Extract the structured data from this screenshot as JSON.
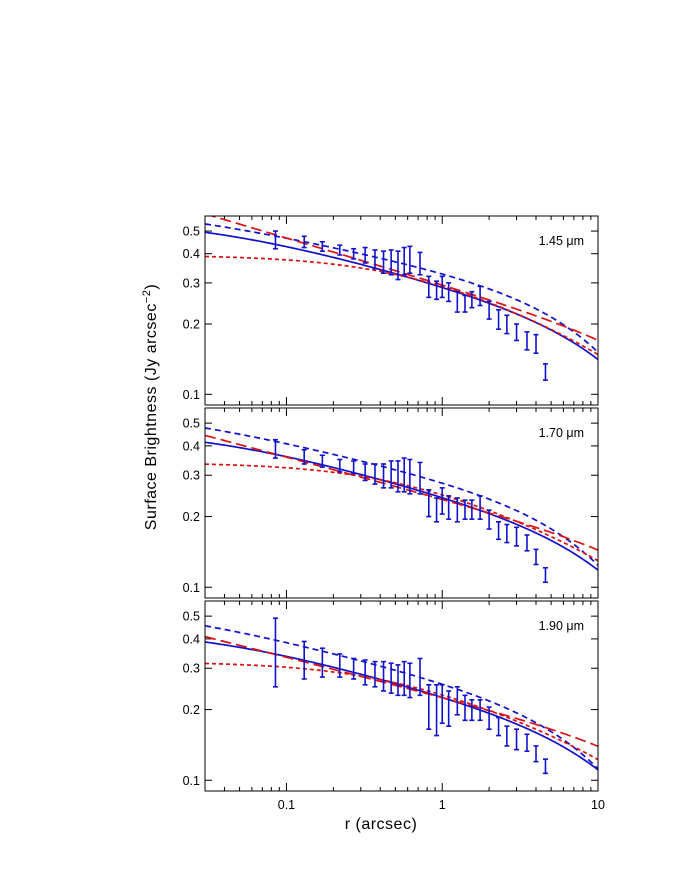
{
  "chart_data": {
    "type": "scatter",
    "xlabel": "r  (arcsec)",
    "ylabel": "Surface Brightness  (Jy arcsec",
    "ylabel_exponent": "−2",
    "ylabel_close": ")",
    "xscale": "log",
    "yscale": "log",
    "xlim": [
      0.03,
      10
    ],
    "ylim": [
      0.09,
      0.58
    ],
    "x_ticks": [
      0.1,
      1,
      10
    ],
    "x_tick_labels": [
      "0.1",
      "1",
      "10"
    ],
    "y_ticks": [
      0.1,
      0.2,
      0.3,
      0.4,
      0.5
    ],
    "y_tick_labels": [
      "0.1",
      "0.2",
      "0.3",
      "0.4",
      "0.5"
    ],
    "colors": {
      "data": "#1111cc",
      "red": "#dd1111",
      "axis": "#000000"
    },
    "panels": [
      {
        "label": "1.45 μm",
        "points": [
          {
            "x": 0.085,
            "y": 0.46,
            "err": 0.04
          },
          {
            "x": 0.13,
            "y": 0.45,
            "err": 0.025
          },
          {
            "x": 0.17,
            "y": 0.43,
            "err": 0.02
          },
          {
            "x": 0.22,
            "y": 0.415,
            "err": 0.02
          },
          {
            "x": 0.27,
            "y": 0.4,
            "err": 0.02
          },
          {
            "x": 0.32,
            "y": 0.395,
            "err": 0.03
          },
          {
            "x": 0.37,
            "y": 0.38,
            "err": 0.035
          },
          {
            "x": 0.42,
            "y": 0.37,
            "err": 0.04
          },
          {
            "x": 0.47,
            "y": 0.37,
            "err": 0.045
          },
          {
            "x": 0.52,
            "y": 0.36,
            "err": 0.05
          },
          {
            "x": 0.57,
            "y": 0.375,
            "err": 0.05
          },
          {
            "x": 0.62,
            "y": 0.38,
            "err": 0.05
          },
          {
            "x": 0.72,
            "y": 0.365,
            "err": 0.04
          },
          {
            "x": 0.82,
            "y": 0.29,
            "err": 0.03
          },
          {
            "x": 0.92,
            "y": 0.28,
            "err": 0.025
          },
          {
            "x": 1.0,
            "y": 0.29,
            "err": 0.03
          },
          {
            "x": 1.1,
            "y": 0.275,
            "err": 0.025
          },
          {
            "x": 1.25,
            "y": 0.25,
            "err": 0.025
          },
          {
            "x": 1.4,
            "y": 0.245,
            "err": 0.02
          },
          {
            "x": 1.55,
            "y": 0.255,
            "err": 0.02
          },
          {
            "x": 1.75,
            "y": 0.265,
            "err": 0.025
          },
          {
            "x": 2.0,
            "y": 0.23,
            "err": 0.02
          },
          {
            "x": 2.3,
            "y": 0.21,
            "err": 0.02
          },
          {
            "x": 2.6,
            "y": 0.2,
            "err": 0.018
          },
          {
            "x": 3.0,
            "y": 0.185,
            "err": 0.015
          },
          {
            "x": 3.5,
            "y": 0.17,
            "err": 0.015
          },
          {
            "x": 4.0,
            "y": 0.165,
            "err": 0.015
          },
          {
            "x": 4.6,
            "y": 0.125,
            "err": 0.01
          }
        ],
        "curves": {
          "blue_solid": {
            "amp": 0.56,
            "core": 0.03,
            "alpha": 0.18,
            "rt": 30
          },
          "blue_dashed": {
            "amp": 0.64,
            "core": 0.012,
            "alpha": 0.14,
            "rt": 20
          },
          "red_dotted": {
            "amp": 0.395,
            "core": 0.58,
            "alpha": 0.3,
            "rt": 90
          },
          "red_dashed": {
            "amp": 0.34,
            "pivot": 0.5,
            "alpha": 0.47,
            "rt": 100
          }
        }
      },
      {
        "label": "1.70 μm",
        "points": [
          {
            "x": 0.085,
            "y": 0.39,
            "err": 0.035
          },
          {
            "x": 0.13,
            "y": 0.36,
            "err": 0.025
          },
          {
            "x": 0.17,
            "y": 0.345,
            "err": 0.02
          },
          {
            "x": 0.22,
            "y": 0.33,
            "err": 0.02
          },
          {
            "x": 0.27,
            "y": 0.325,
            "err": 0.02
          },
          {
            "x": 0.32,
            "y": 0.31,
            "err": 0.025
          },
          {
            "x": 0.37,
            "y": 0.305,
            "err": 0.03
          },
          {
            "x": 0.42,
            "y": 0.3,
            "err": 0.035
          },
          {
            "x": 0.47,
            "y": 0.305,
            "err": 0.04
          },
          {
            "x": 0.52,
            "y": 0.3,
            "err": 0.045
          },
          {
            "x": 0.57,
            "y": 0.305,
            "err": 0.05
          },
          {
            "x": 0.62,
            "y": 0.3,
            "err": 0.05
          },
          {
            "x": 0.72,
            "y": 0.295,
            "err": 0.045
          },
          {
            "x": 0.82,
            "y": 0.23,
            "err": 0.03
          },
          {
            "x": 0.92,
            "y": 0.215,
            "err": 0.025
          },
          {
            "x": 1.0,
            "y": 0.235,
            "err": 0.03
          },
          {
            "x": 1.1,
            "y": 0.22,
            "err": 0.025
          },
          {
            "x": 1.25,
            "y": 0.215,
            "err": 0.025
          },
          {
            "x": 1.4,
            "y": 0.215,
            "err": 0.02
          },
          {
            "x": 1.55,
            "y": 0.215,
            "err": 0.02
          },
          {
            "x": 1.75,
            "y": 0.22,
            "err": 0.025
          },
          {
            "x": 2.0,
            "y": 0.195,
            "err": 0.018
          },
          {
            "x": 2.3,
            "y": 0.175,
            "err": 0.015
          },
          {
            "x": 2.6,
            "y": 0.17,
            "err": 0.015
          },
          {
            "x": 3.0,
            "y": 0.165,
            "err": 0.015
          },
          {
            "x": 3.5,
            "y": 0.155,
            "err": 0.012
          },
          {
            "x": 4.0,
            "y": 0.135,
            "err": 0.01
          },
          {
            "x": 4.6,
            "y": 0.113,
            "err": 0.008
          }
        ],
        "curves": {
          "blue_solid": {
            "amp": 0.47,
            "core": 0.03,
            "alpha": 0.18,
            "rt": 30
          },
          "blue_dashed": {
            "amp": 0.58,
            "core": 0.012,
            "alpha": 0.155,
            "rt": 20
          },
          "red_dotted": {
            "amp": 0.34,
            "core": 0.5,
            "alpha": 0.28,
            "rt": 90
          },
          "red_dashed": {
            "amp": 0.27,
            "pivot": 0.5,
            "alpha": 0.42,
            "rt": 100
          }
        }
      },
      {
        "label": "1.90 μm",
        "points": [
          {
            "x": 0.085,
            "y": 0.37,
            "err": 0.12
          },
          {
            "x": 0.13,
            "y": 0.33,
            "err": 0.06
          },
          {
            "x": 0.17,
            "y": 0.32,
            "err": 0.045
          },
          {
            "x": 0.22,
            "y": 0.31,
            "err": 0.035
          },
          {
            "x": 0.27,
            "y": 0.3,
            "err": 0.03
          },
          {
            "x": 0.32,
            "y": 0.29,
            "err": 0.035
          },
          {
            "x": 0.37,
            "y": 0.285,
            "err": 0.035
          },
          {
            "x": 0.42,
            "y": 0.28,
            "err": 0.04
          },
          {
            "x": 0.47,
            "y": 0.275,
            "err": 0.04
          },
          {
            "x": 0.52,
            "y": 0.27,
            "err": 0.04
          },
          {
            "x": 0.57,
            "y": 0.275,
            "err": 0.045
          },
          {
            "x": 0.62,
            "y": 0.27,
            "err": 0.045
          },
          {
            "x": 0.72,
            "y": 0.28,
            "err": 0.05
          },
          {
            "x": 0.82,
            "y": 0.21,
            "err": 0.045
          },
          {
            "x": 0.92,
            "y": 0.205,
            "err": 0.05
          },
          {
            "x": 1.0,
            "y": 0.215,
            "err": 0.04
          },
          {
            "x": 1.1,
            "y": 0.205,
            "err": 0.035
          },
          {
            "x": 1.25,
            "y": 0.22,
            "err": 0.03
          },
          {
            "x": 1.4,
            "y": 0.205,
            "err": 0.025
          },
          {
            "x": 1.55,
            "y": 0.2,
            "err": 0.02
          },
          {
            "x": 1.75,
            "y": 0.2,
            "err": 0.02
          },
          {
            "x": 2.0,
            "y": 0.185,
            "err": 0.02
          },
          {
            "x": 2.3,
            "y": 0.17,
            "err": 0.015
          },
          {
            "x": 2.6,
            "y": 0.155,
            "err": 0.015
          },
          {
            "x": 3.0,
            "y": 0.15,
            "err": 0.015
          },
          {
            "x": 3.5,
            "y": 0.145,
            "err": 0.012
          },
          {
            "x": 4.0,
            "y": 0.13,
            "err": 0.01
          },
          {
            "x": 4.6,
            "y": 0.115,
            "err": 0.008
          }
        ],
        "curves": {
          "blue_solid": {
            "amp": 0.44,
            "core": 0.03,
            "alpha": 0.18,
            "rt": 30
          },
          "blue_dashed": {
            "amp": 0.56,
            "core": 0.012,
            "alpha": 0.165,
            "rt": 20
          },
          "red_dotted": {
            "amp": 0.32,
            "core": 0.45,
            "alpha": 0.27,
            "rt": 90
          },
          "red_dashed": {
            "amp": 0.255,
            "pivot": 0.5,
            "alpha": 0.4,
            "rt": 100
          }
        }
      }
    ]
  }
}
